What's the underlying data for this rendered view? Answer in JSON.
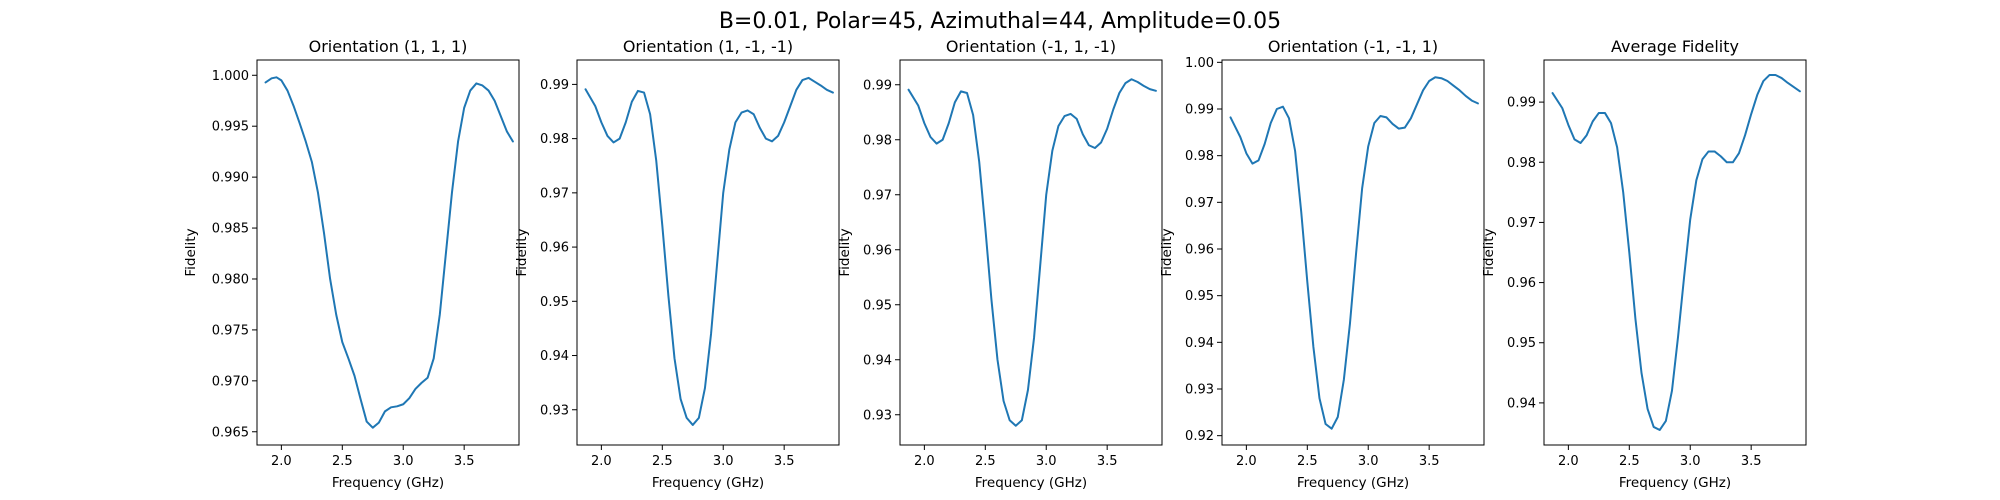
{
  "figure": {
    "suptitle": "B=0.01, Polar=45, Azimuthal=44, Amplitude=0.05"
  },
  "colors": {
    "line": "#1f77b4"
  },
  "chart_data": [
    {
      "type": "line",
      "title": "Orientation (1, 1, 1)",
      "xlabel": "Frequency (GHz)",
      "ylabel": "Fidelity",
      "xlim": [
        1.8,
        3.95
      ],
      "ylim": [
        0.9637,
        1.0015
      ],
      "xticks": [
        2.0,
        2.5,
        3.0,
        3.5
      ],
      "xtick_labels": [
        "2.0",
        "2.5",
        "3.0",
        "3.5"
      ],
      "yticks": [
        0.965,
        0.97,
        0.975,
        0.98,
        0.985,
        0.99,
        0.995,
        1.0
      ],
      "ytick_labels": [
        "0.965",
        "0.970",
        "0.975",
        "0.980",
        "0.985",
        "0.990",
        "0.995",
        "1.000"
      ],
      "grid": false,
      "series": [
        {
          "x": [
            1.87,
            1.92,
            1.96,
            2.0,
            2.05,
            2.1,
            2.15,
            2.2,
            2.25,
            2.3,
            2.35,
            2.4,
            2.45,
            2.5,
            2.55,
            2.6,
            2.65,
            2.7,
            2.75,
            2.8,
            2.85,
            2.9,
            2.95,
            3.0,
            3.05,
            3.1,
            3.15,
            3.2,
            3.25,
            3.3,
            3.35,
            3.4,
            3.45,
            3.5,
            3.55,
            3.6,
            3.65,
            3.7,
            3.75,
            3.8,
            3.85,
            3.9
          ],
          "y": [
            0.9993,
            0.9997,
            0.9998,
            0.9995,
            0.9985,
            0.997,
            0.9953,
            0.9935,
            0.9915,
            0.9885,
            0.9845,
            0.98,
            0.9765,
            0.9738,
            0.9722,
            0.9705,
            0.9682,
            0.966,
            0.9654,
            0.9659,
            0.967,
            0.9674,
            0.9675,
            0.9677,
            0.9683,
            0.9692,
            0.9698,
            0.9703,
            0.9722,
            0.9765,
            0.9825,
            0.9885,
            0.9935,
            0.9968,
            0.9985,
            0.9992,
            0.999,
            0.9985,
            0.9975,
            0.996,
            0.9945,
            0.9935
          ]
        }
      ]
    },
    {
      "type": "line",
      "title": "Orientation (1, -1, -1)",
      "xlabel": "Frequency (GHz)",
      "ylabel": "Fidelity",
      "xlim": [
        1.8,
        3.95
      ],
      "ylim": [
        0.9235,
        0.9945
      ],
      "xticks": [
        2.0,
        2.5,
        3.0,
        3.5
      ],
      "xtick_labels": [
        "2.0",
        "2.5",
        "3.0",
        "3.5"
      ],
      "yticks": [
        0.93,
        0.94,
        0.95,
        0.96,
        0.97,
        0.98,
        0.99
      ],
      "ytick_labels": [
        "0.93",
        "0.94",
        "0.95",
        "0.96",
        "0.97",
        "0.98",
        "0.99"
      ],
      "grid": false,
      "series": [
        {
          "x": [
            1.87,
            1.95,
            2.0,
            2.05,
            2.1,
            2.15,
            2.2,
            2.25,
            2.3,
            2.35,
            2.4,
            2.45,
            2.5,
            2.55,
            2.6,
            2.65,
            2.7,
            2.75,
            2.8,
            2.85,
            2.9,
            2.95,
            3.0,
            3.05,
            3.1,
            3.15,
            3.2,
            3.25,
            3.3,
            3.35,
            3.4,
            3.45,
            3.5,
            3.55,
            3.6,
            3.65,
            3.7,
            3.75,
            3.8,
            3.85,
            3.9
          ],
          "y": [
            0.9891,
            0.986,
            0.983,
            0.9805,
            0.9793,
            0.98,
            0.983,
            0.9868,
            0.9888,
            0.9885,
            0.9845,
            0.976,
            0.964,
            0.951,
            0.9395,
            0.932,
            0.9285,
            0.9272,
            0.9285,
            0.934,
            0.944,
            0.957,
            0.97,
            0.978,
            0.983,
            0.9848,
            0.9852,
            0.9845,
            0.982,
            0.98,
            0.9795,
            0.9805,
            0.983,
            0.986,
            0.989,
            0.9908,
            0.9912,
            0.9905,
            0.9898,
            0.989,
            0.9885
          ]
        }
      ]
    },
    {
      "type": "line",
      "title": "Orientation (-1, 1, -1)",
      "xlabel": "Frequency (GHz)",
      "ylabel": "Fidelity",
      "xlim": [
        1.8,
        3.95
      ],
      "ylim": [
        0.9245,
        0.9945
      ],
      "xticks": [
        2.0,
        2.5,
        3.0,
        3.5
      ],
      "xtick_labels": [
        "2.0",
        "2.5",
        "3.0",
        "3.5"
      ],
      "yticks": [
        0.93,
        0.94,
        0.95,
        0.96,
        0.97,
        0.98,
        0.99
      ],
      "ytick_labels": [
        "0.93",
        "0.94",
        "0.95",
        "0.96",
        "0.97",
        "0.98",
        "0.99"
      ],
      "grid": false,
      "series": [
        {
          "x": [
            1.87,
            1.95,
            2.0,
            2.05,
            2.1,
            2.15,
            2.2,
            2.25,
            2.3,
            2.35,
            2.4,
            2.45,
            2.5,
            2.55,
            2.6,
            2.65,
            2.7,
            2.75,
            2.8,
            2.85,
            2.9,
            2.95,
            3.0,
            3.05,
            3.1,
            3.15,
            3.2,
            3.25,
            3.3,
            3.35,
            3.4,
            3.45,
            3.5,
            3.55,
            3.6,
            3.65,
            3.7,
            3.75,
            3.8,
            3.85,
            3.9
          ],
          "y": [
            0.9891,
            0.9862,
            0.983,
            0.9805,
            0.9793,
            0.98,
            0.983,
            0.9868,
            0.9888,
            0.9885,
            0.9845,
            0.976,
            0.964,
            0.951,
            0.94,
            0.9325,
            0.929,
            0.928,
            0.929,
            0.9345,
            0.944,
            0.957,
            0.97,
            0.978,
            0.9825,
            0.9843,
            0.9847,
            0.9838,
            0.981,
            0.979,
            0.9785,
            0.9795,
            0.982,
            0.9855,
            0.9885,
            0.9903,
            0.991,
            0.9905,
            0.9898,
            0.9892,
            0.9889
          ]
        }
      ]
    },
    {
      "type": "line",
      "title": "Orientation (-1, -1, 1)",
      "xlabel": "Frequency (GHz)",
      "ylabel": "Fidelity",
      "xlim": [
        1.8,
        3.95
      ],
      "ylim": [
        0.918,
        1.0005
      ],
      "xticks": [
        2.0,
        2.5,
        3.0,
        3.5
      ],
      "xtick_labels": [
        "2.0",
        "2.5",
        "3.0",
        "3.5"
      ],
      "yticks": [
        0.92,
        0.93,
        0.94,
        0.95,
        0.96,
        0.97,
        0.98,
        0.99,
        1.0
      ],
      "ytick_labels": [
        "0.92",
        "0.93",
        "0.94",
        "0.95",
        "0.96",
        "0.97",
        "0.98",
        "0.99",
        "1.00"
      ],
      "grid": false,
      "series": [
        {
          "x": [
            1.87,
            1.95,
            2.0,
            2.05,
            2.1,
            2.15,
            2.2,
            2.25,
            2.3,
            2.35,
            2.4,
            2.45,
            2.5,
            2.55,
            2.6,
            2.65,
            2.7,
            2.75,
            2.8,
            2.85,
            2.9,
            2.95,
            3.0,
            3.05,
            3.1,
            3.15,
            3.2,
            3.25,
            3.3,
            3.35,
            3.4,
            3.45,
            3.5,
            3.55,
            3.6,
            3.65,
            3.7,
            3.75,
            3.8,
            3.85,
            3.9
          ],
          "y": [
            0.9882,
            0.984,
            0.9805,
            0.9783,
            0.979,
            0.9825,
            0.987,
            0.99,
            0.9905,
            0.988,
            0.981,
            0.968,
            0.953,
            0.939,
            0.928,
            0.9225,
            0.9215,
            0.924,
            0.932,
            0.944,
            0.959,
            0.973,
            0.982,
            0.987,
            0.9885,
            0.9882,
            0.9868,
            0.9858,
            0.986,
            0.988,
            0.991,
            0.994,
            0.996,
            0.9968,
            0.9966,
            0.996,
            0.995,
            0.994,
            0.9928,
            0.9918,
            0.9912
          ]
        }
      ]
    },
    {
      "type": "line",
      "title": "Average Fidelity",
      "xlabel": "Frequency (GHz)",
      "ylabel": "Fidelity",
      "xlim": [
        1.8,
        3.95
      ],
      "ylim": [
        0.933,
        0.997
      ],
      "xticks": [
        2.0,
        2.5,
        3.0,
        3.5
      ],
      "xtick_labels": [
        "2.0",
        "2.5",
        "3.0",
        "3.5"
      ],
      "yticks": [
        0.94,
        0.95,
        0.96,
        0.97,
        0.98,
        0.99
      ],
      "ytick_labels": [
        "0.94",
        "0.95",
        "0.96",
        "0.97",
        "0.98",
        "0.99"
      ],
      "grid": false,
      "series": [
        {
          "x": [
            1.87,
            1.95,
            2.0,
            2.05,
            2.1,
            2.15,
            2.2,
            2.25,
            2.3,
            2.35,
            2.4,
            2.45,
            2.5,
            2.55,
            2.6,
            2.65,
            2.7,
            2.75,
            2.8,
            2.85,
            2.9,
            2.95,
            3.0,
            3.05,
            3.1,
            3.15,
            3.2,
            3.25,
            3.3,
            3.35,
            3.4,
            3.45,
            3.5,
            3.55,
            3.6,
            3.65,
            3.7,
            3.75,
            3.8,
            3.85,
            3.9
          ],
          "y": [
            0.9915,
            0.989,
            0.9862,
            0.9838,
            0.9832,
            0.9845,
            0.9868,
            0.9882,
            0.9882,
            0.9865,
            0.9825,
            0.975,
            0.965,
            0.954,
            0.945,
            0.939,
            0.936,
            0.9355,
            0.937,
            0.942,
            0.951,
            0.961,
            0.9705,
            0.977,
            0.9805,
            0.9818,
            0.9818,
            0.981,
            0.98,
            0.98,
            0.9815,
            0.9845,
            0.988,
            0.9912,
            0.9935,
            0.9945,
            0.9945,
            0.994,
            0.9932,
            0.9925,
            0.9918
          ]
        }
      ]
    }
  ]
}
